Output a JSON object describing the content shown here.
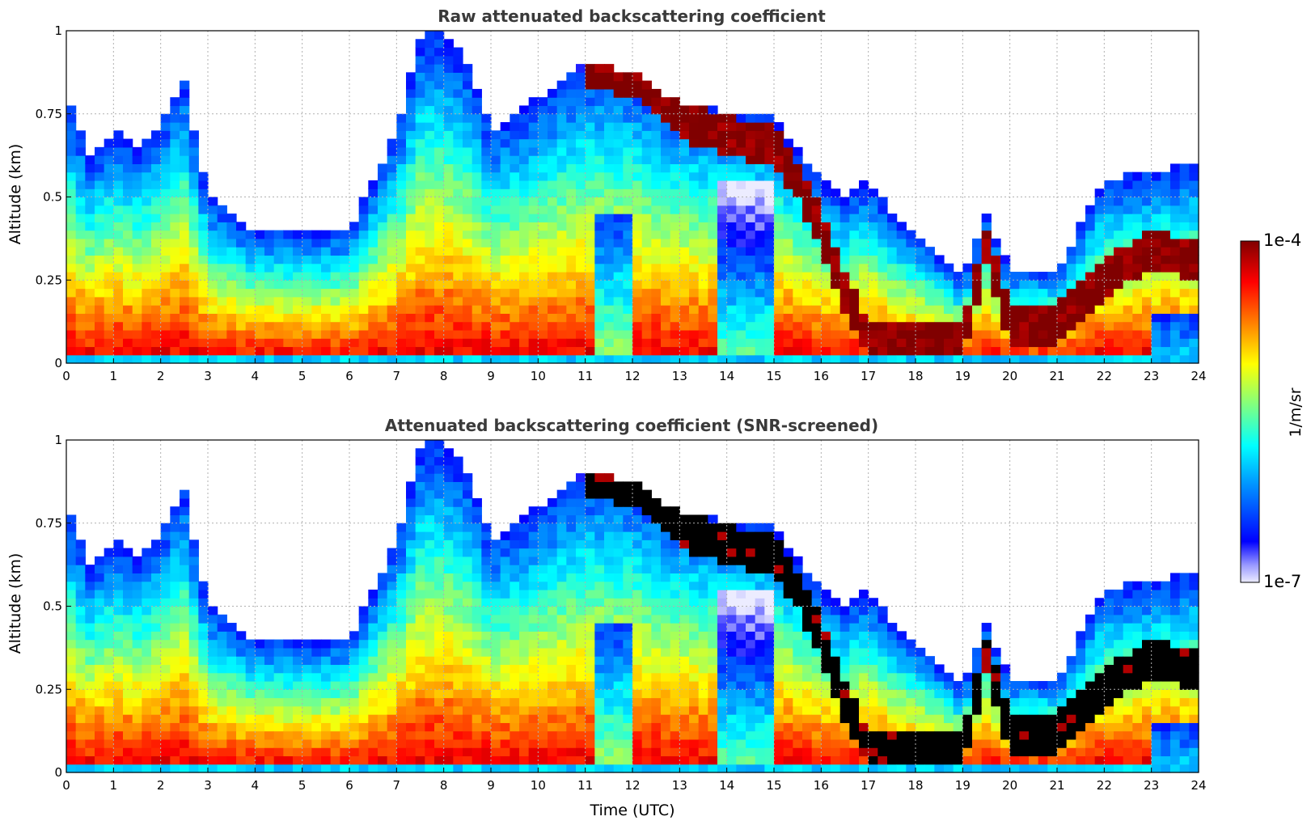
{
  "chart_data": [
    {
      "type": "heatmap",
      "title": "Raw attenuated backscattering coefficient",
      "xlabel": "",
      "ylabel": "Altitude (km)",
      "xlim": [
        0,
        24
      ],
      "ylim": [
        0,
        1
      ],
      "xticks": [
        "0",
        "1",
        "2",
        "3",
        "4",
        "5",
        "6",
        "7",
        "8",
        "9",
        "10",
        "11",
        "12",
        "13",
        "14",
        "15",
        "16",
        "17",
        "18",
        "19",
        "20",
        "21",
        "22",
        "23",
        "24"
      ],
      "yticks": [
        "0",
        "0.25",
        "0.5",
        "0.75",
        "1"
      ],
      "grid": true,
      "screened": false,
      "layer_top_km": [
        {
          "t": 0.0,
          "h": 0.8
        },
        {
          "t": 0.5,
          "h": 0.62
        },
        {
          "t": 1.0,
          "h": 0.7
        },
        {
          "t": 1.5,
          "h": 0.65
        },
        {
          "t": 2.0,
          "h": 0.72
        },
        {
          "t": 2.5,
          "h": 0.85
        },
        {
          "t": 3.0,
          "h": 0.5
        },
        {
          "t": 4.0,
          "h": 0.4
        },
        {
          "t": 5.0,
          "h": 0.4
        },
        {
          "t": 6.0,
          "h": 0.4
        },
        {
          "t": 7.0,
          "h": 0.7
        },
        {
          "t": 7.5,
          "h": 0.98
        },
        {
          "t": 8.0,
          "h": 1.0
        },
        {
          "t": 8.5,
          "h": 0.9
        },
        {
          "t": 9.0,
          "h": 0.7
        },
        {
          "t": 10.0,
          "h": 0.8
        },
        {
          "t": 11.0,
          "h": 0.9
        },
        {
          "t": 12.0,
          "h": 0.88
        },
        {
          "t": 13.0,
          "h": 0.78
        },
        {
          "t": 14.0,
          "h": 0.76
        },
        {
          "t": 15.0,
          "h": 0.74
        },
        {
          "t": 16.0,
          "h": 0.55
        },
        {
          "t": 16.5,
          "h": 0.5
        },
        {
          "t": 17.0,
          "h": 0.55
        },
        {
          "t": 17.5,
          "h": 0.45
        },
        {
          "t": 18.0,
          "h": 0.4
        },
        {
          "t": 19.0,
          "h": 0.25
        },
        {
          "t": 19.5,
          "h": 0.45
        },
        {
          "t": 20.0,
          "h": 0.28
        },
        {
          "t": 21.0,
          "h": 0.28
        },
        {
          "t": 22.0,
          "h": 0.55
        },
        {
          "t": 23.0,
          "h": 0.58
        },
        {
          "t": 24.0,
          "h": 0.6
        }
      ],
      "cloud_layer_km": [
        {
          "t": 11.0,
          "h": 0.9
        },
        {
          "t": 12.0,
          "h": 0.86
        },
        {
          "t": 13.0,
          "h": 0.74
        },
        {
          "t": 14.0,
          "h": 0.68
        },
        {
          "t": 15.0,
          "h": 0.66
        },
        {
          "t": 15.5,
          "h": 0.55
        },
        {
          "t": 16.0,
          "h": 0.4
        },
        {
          "t": 16.5,
          "h": 0.22
        },
        {
          "t": 17.0,
          "h": 0.07
        },
        {
          "t": 18.0,
          "h": 0.06
        },
        {
          "t": 19.0,
          "h": 0.07
        },
        {
          "t": 19.5,
          "h": 0.35
        },
        {
          "t": 20.0,
          "h": 0.12
        },
        {
          "t": 21.0,
          "h": 0.12
        },
        {
          "t": 22.0,
          "h": 0.25
        },
        {
          "t": 23.0,
          "h": 0.35
        },
        {
          "t": 24.0,
          "h": 0.3
        }
      ]
    },
    {
      "type": "heatmap",
      "title": "Attenuated backscattering coefficient (SNR-screened)",
      "xlabel": "Time (UTC)",
      "ylabel": "Altitude (km)",
      "xlim": [
        0,
        24
      ],
      "ylim": [
        0,
        1
      ],
      "xticks": [
        "0",
        "1",
        "2",
        "3",
        "4",
        "5",
        "6",
        "7",
        "8",
        "9",
        "10",
        "11",
        "12",
        "13",
        "14",
        "15",
        "16",
        "17",
        "18",
        "19",
        "20",
        "21",
        "22",
        "23",
        "24"
      ],
      "yticks": [
        "0",
        "0.25",
        "0.5",
        "0.75",
        "1"
      ],
      "grid": true,
      "screened": true
    }
  ],
  "colorbar": {
    "label": "1/m/sr",
    "max_label": "1e-4",
    "min_label": "1e-7",
    "scale": "log",
    "range": [
      1e-07,
      0.0001
    ],
    "colors": [
      "#e8e8ff",
      "#0000ff",
      "#00a0ff",
      "#00ffff",
      "#80ff80",
      "#ffff00",
      "#ff8000",
      "#ff0000",
      "#800000"
    ]
  }
}
